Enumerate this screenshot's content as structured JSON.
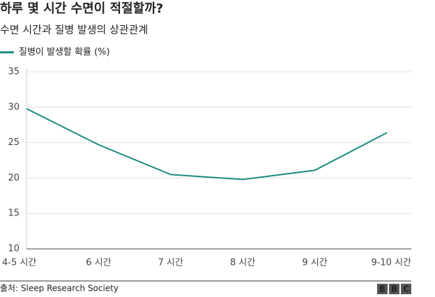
{
  "chart_data": {
    "type": "line",
    "title": "하루 몇 시간 수면이 적절할까?",
    "subtitle": "수면 시간과 질병 발생의 상관관계",
    "categories": [
      "4-5 시간",
      "6 시간",
      "7 시간",
      "8 시간",
      "9 시간",
      "9-10 시간"
    ],
    "series": [
      {
        "name": "질병이 발생할 확률 (%)",
        "color": "#1a8a80",
        "values": [
          29.8,
          24.7,
          20.5,
          19.8,
          21.1,
          26.4
        ]
      }
    ],
    "ylim": [
      10,
      35
    ],
    "yticks": [
      10,
      15,
      20,
      25,
      30,
      35
    ],
    "grid": true,
    "source": "출처: Sleep Research Society",
    "logo": [
      "B",
      "B",
      "C"
    ]
  }
}
